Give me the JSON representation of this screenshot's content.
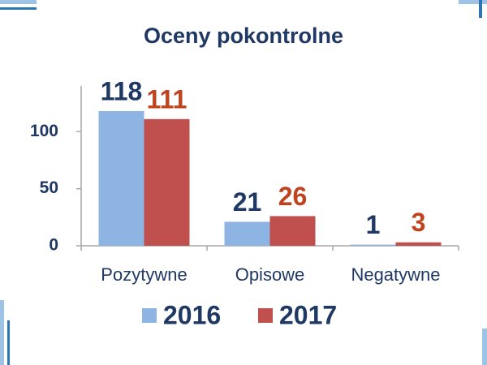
{
  "chart_data": {
    "type": "bar",
    "title": "Oceny pokontrolne",
    "categories": [
      "Pozytywne",
      "Opisowe",
      "Negatywne"
    ],
    "series": [
      {
        "name": "2016",
        "color": "#8eb4e3",
        "label_color": "#1f3864",
        "values": [
          118,
          21,
          1
        ]
      },
      {
        "name": "2017",
        "color": "#c0504d",
        "label_color": "#c0431f",
        "values": [
          111,
          26,
          3
        ]
      }
    ],
    "ylim": [
      0,
      140
    ],
    "yticks": [
      0,
      50,
      100
    ],
    "grid": false,
    "legend": "bottom"
  }
}
